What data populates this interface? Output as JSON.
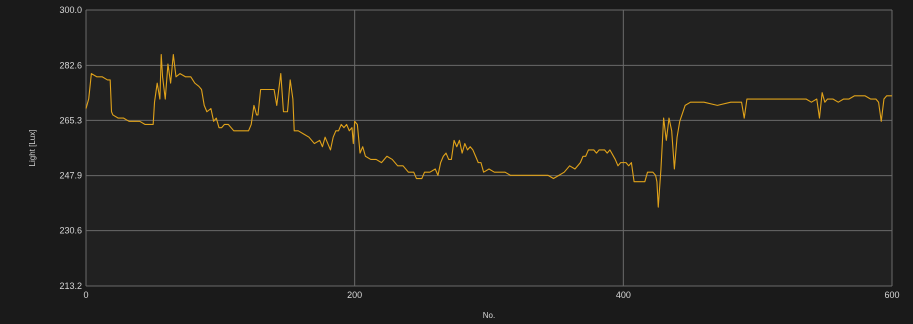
{
  "chart_data": {
    "type": "line",
    "xlabel": "No.",
    "ylabel": "Light [Lux]",
    "xlim": [
      0,
      600
    ],
    "ylim": [
      213.2,
      300.0
    ],
    "x_ticks": [
      0,
      200,
      400,
      600
    ],
    "y_ticks": [
      213.2,
      230.6,
      247.9,
      265.3,
      282.6,
      300.0
    ],
    "x_tick_labels": [
      "0",
      "200",
      "400",
      "600"
    ],
    "y_tick_labels": [
      "213.2",
      "230.6",
      "247.9",
      "265.3",
      "282.6",
      "300.0"
    ],
    "grid": true,
    "colors": {
      "background": "#1a1a1a",
      "plot_background": "#212121",
      "grid": "#6a6a6a",
      "line": "#e0a21a",
      "text": "#d8d8d8"
    },
    "series": [
      {
        "points": [
          [
            0,
            269
          ],
          [
            2,
            272
          ],
          [
            4,
            280
          ],
          [
            8,
            279
          ],
          [
            12,
            279
          ],
          [
            16,
            278
          ],
          [
            18,
            278
          ],
          [
            19,
            268
          ],
          [
            20,
            267
          ],
          [
            24,
            266
          ],
          [
            28,
            266
          ],
          [
            32,
            265
          ],
          [
            36,
            265
          ],
          [
            40,
            265
          ],
          [
            44,
            264
          ],
          [
            48,
            264
          ],
          [
            50,
            264
          ],
          [
            51,
            271
          ],
          [
            53,
            277
          ],
          [
            55,
            272
          ],
          [
            56,
            286
          ],
          [
            57,
            279
          ],
          [
            59,
            272
          ],
          [
            61,
            283
          ],
          [
            63,
            277
          ],
          [
            65,
            286
          ],
          [
            67,
            279
          ],
          [
            70,
            280
          ],
          [
            74,
            279
          ],
          [
            78,
            279
          ],
          [
            81,
            277
          ],
          [
            84,
            276
          ],
          [
            86,
            275
          ],
          [
            88,
            270
          ],
          [
            90,
            268
          ],
          [
            93,
            269
          ],
          [
            95,
            265
          ],
          [
            97,
            266
          ],
          [
            99,
            263
          ],
          [
            101,
            263
          ],
          [
            103,
            264
          ],
          [
            106,
            264
          ],
          [
            110,
            262
          ],
          [
            114,
            262
          ],
          [
            118,
            262
          ],
          [
            121,
            262
          ],
          [
            123,
            264
          ],
          [
            125,
            270
          ],
          [
            127,
            267
          ],
          [
            128,
            267
          ],
          [
            130,
            275
          ],
          [
            133,
            275
          ],
          [
            137,
            275
          ],
          [
            140,
            275
          ],
          [
            142,
            270
          ],
          [
            145,
            280
          ],
          [
            147,
            268
          ],
          [
            150,
            268
          ],
          [
            152,
            278
          ],
          [
            154,
            272
          ],
          [
            155,
            262
          ],
          [
            158,
            262
          ],
          [
            162,
            261
          ],
          [
            166,
            260
          ],
          [
            170,
            258
          ],
          [
            174,
            259
          ],
          [
            176,
            257
          ],
          [
            178,
            260
          ],
          [
            180,
            258
          ],
          [
            182,
            256
          ],
          [
            184,
            260
          ],
          [
            186,
            262
          ],
          [
            188,
            262
          ],
          [
            190,
            264
          ],
          [
            192,
            263
          ],
          [
            194,
            264
          ],
          [
            196,
            262
          ],
          [
            198,
            263
          ],
          [
            199,
            258
          ],
          [
            200,
            265
          ],
          [
            202,
            264
          ],
          [
            204,
            255
          ],
          [
            206,
            257
          ],
          [
            208,
            254
          ],
          [
            212,
            253
          ],
          [
            216,
            253
          ],
          [
            220,
            252
          ],
          [
            224,
            254
          ],
          [
            228,
            253
          ],
          [
            232,
            251
          ],
          [
            236,
            251
          ],
          [
            240,
            249
          ],
          [
            244,
            249
          ],
          [
            246,
            247
          ],
          [
            250,
            247
          ],
          [
            252,
            249
          ],
          [
            256,
            249
          ],
          [
            260,
            250
          ],
          [
            262,
            248
          ],
          [
            264,
            252
          ],
          [
            266,
            254
          ],
          [
            268,
            255
          ],
          [
            270,
            253
          ],
          [
            272,
            253
          ],
          [
            274,
            259
          ],
          [
            276,
            257
          ],
          [
            278,
            259
          ],
          [
            280,
            255
          ],
          [
            282,
            258
          ],
          [
            284,
            256
          ],
          [
            286,
            257
          ],
          [
            288,
            256
          ],
          [
            290,
            254
          ],
          [
            292,
            252
          ],
          [
            294,
            252
          ],
          [
            296,
            249
          ],
          [
            300,
            250
          ],
          [
            304,
            249
          ],
          [
            308,
            249
          ],
          [
            312,
            249
          ],
          [
            316,
            248
          ],
          [
            320,
            248
          ],
          [
            324,
            248
          ],
          [
            328,
            248
          ],
          [
            332,
            248
          ],
          [
            336,
            248
          ],
          [
            340,
            248
          ],
          [
            344,
            248
          ],
          [
            348,
            247
          ],
          [
            352,
            248
          ],
          [
            356,
            249
          ],
          [
            360,
            251
          ],
          [
            364,
            250
          ],
          [
            368,
            252
          ],
          [
            370,
            254
          ],
          [
            372,
            254
          ],
          [
            374,
            256
          ],
          [
            376,
            256
          ],
          [
            378,
            256
          ],
          [
            380,
            255
          ],
          [
            382,
            256
          ],
          [
            384,
            256
          ],
          [
            386,
            256
          ],
          [
            388,
            255
          ],
          [
            390,
            256
          ],
          [
            394,
            253
          ],
          [
            396,
            251
          ],
          [
            398,
            252
          ],
          [
            400,
            252
          ],
          [
            402,
            252
          ],
          [
            404,
            251
          ],
          [
            406,
            252
          ],
          [
            408,
            246
          ],
          [
            410,
            246
          ],
          [
            412,
            246
          ],
          [
            414,
            246
          ],
          [
            416,
            246
          ],
          [
            418,
            249
          ],
          [
            420,
            249
          ],
          [
            422,
            249
          ],
          [
            424,
            248
          ],
          [
            425,
            246
          ],
          [
            426,
            238
          ],
          [
            428,
            250
          ],
          [
            430,
            266
          ],
          [
            432,
            259
          ],
          [
            434,
            266
          ],
          [
            436,
            262
          ],
          [
            438,
            250
          ],
          [
            440,
            260
          ],
          [
            442,
            265
          ],
          [
            446,
            270
          ],
          [
            450,
            271
          ],
          [
            460,
            271
          ],
          [
            470,
            270
          ],
          [
            480,
            271
          ],
          [
            488,
            271
          ],
          [
            490,
            266
          ],
          [
            492,
            272
          ],
          [
            496,
            272
          ],
          [
            500,
            272
          ],
          [
            510,
            272
          ],
          [
            520,
            272
          ],
          [
            530,
            272
          ],
          [
            536,
            272
          ],
          [
            540,
            271
          ],
          [
            544,
            272
          ],
          [
            546,
            266
          ],
          [
            548,
            274
          ],
          [
            550,
            271
          ],
          [
            552,
            272
          ],
          [
            556,
            272
          ],
          [
            560,
            271
          ],
          [
            564,
            272
          ],
          [
            568,
            272
          ],
          [
            572,
            273
          ],
          [
            576,
            273
          ],
          [
            580,
            273
          ],
          [
            584,
            272
          ],
          [
            588,
            272
          ],
          [
            590,
            271
          ],
          [
            592,
            265
          ],
          [
            594,
            272
          ],
          [
            596,
            273
          ],
          [
            598,
            273
          ],
          [
            600,
            273
          ]
        ]
      }
    ]
  }
}
